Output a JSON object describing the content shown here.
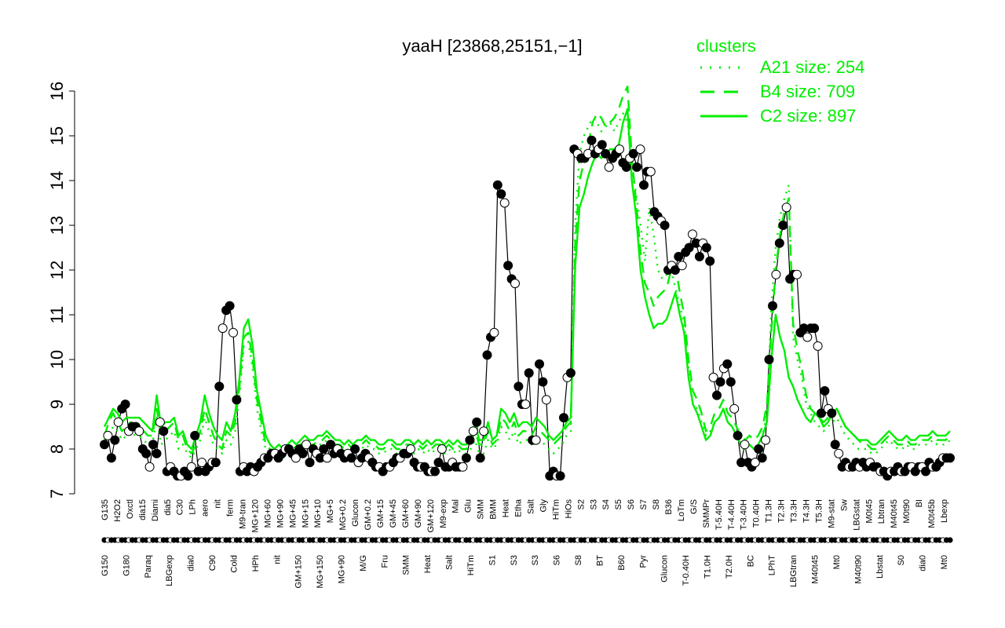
{
  "chart_data": {
    "type": "line",
    "title": "yaaH [23868,25151,−1]",
    "xlabel": "",
    "ylabel": "",
    "ylim": [
      7,
      16
    ],
    "yticks": [
      7,
      8,
      9,
      10,
      11,
      12,
      13,
      14,
      15,
      16
    ],
    "grid": false,
    "legend": {
      "position": "top-right",
      "title": "clusters",
      "entries": [
        {
          "label": "A21 size: 254",
          "style": "dotted"
        },
        {
          "label": "B4 size: 709",
          "style": "dashed"
        },
        {
          "label": "C2 size: 897",
          "style": "solid"
        }
      ]
    },
    "colors": {
      "cluster": "#00ee00",
      "data": "#000000"
    },
    "x_labels_upper": [
      "G135",
      "H2O2",
      "Oxctl",
      "dia15",
      "Diami",
      "dia5",
      "C30",
      "LPh",
      "aero",
      "nit",
      "ferm",
      "M9-tran",
      "MG+120",
      "MG+60",
      "MG+90",
      "MG+45",
      "MG+15",
      "MG+10",
      "MG+5",
      "MG+0.2",
      "Glucon",
      "GM+0.2",
      "GM+15",
      "GM+45",
      "GM+60",
      "GM+90",
      "GM+120",
      "M9-exp",
      "Mal",
      "Glu",
      "SMM",
      "BMM",
      "Heat",
      "Etha",
      "Salt",
      "Gly",
      "HiTm",
      "HiOs",
      "S2",
      "S3",
      "S4",
      "S5",
      "S6",
      "S7",
      "S8",
      "B36",
      "LoTm",
      "G/S",
      "SMMPr",
      "T-5.40H",
      "T-4.40H",
      "T-3.40H",
      "T0.40H",
      "T1.3H",
      "T2.3H",
      "T3.3H",
      "T4.3H",
      "T5.3H",
      "M9-stat",
      "Sw",
      "LBGstat",
      "M0t45",
      "Lbtran",
      "M40t45",
      "M0t90",
      "BI",
      "M0t45b",
      "Lbexp"
    ],
    "x_labels_lower": [
      "G150",
      "G180",
      "Paraq",
      "LBGexp",
      "dia0",
      "C90",
      "Cold",
      "HPh",
      "nit",
      "GM+150",
      "MG+150",
      "MG+90",
      "M/G",
      "Fru",
      "SMM",
      "Heat",
      "Salt",
      "HiTm",
      "S1",
      "S3",
      "S3",
      "S6",
      "S8",
      "BT",
      "B60",
      "Pyr",
      "Glucon",
      "T-0.40H",
      "T1.0H",
      "T2.0H",
      "BC",
      "LPhT",
      "LBGtran",
      "M40t45",
      "Mt0",
      "M40t90",
      "Lbstat",
      "S0",
      "dia0",
      "Mt0"
    ],
    "series": [
      {
        "name": "",
        "values": [
          8.1,
          8.3,
          7.8,
          8.2,
          8.6,
          8.9,
          9.0,
          8.4,
          8.5,
          8.5,
          8.4,
          8.0,
          7.9,
          7.6,
          8.1,
          7.9,
          8.6,
          8.4,
          7.5,
          7.6,
          7.5,
          7.4,
          7.4,
          7.5,
          7.4,
          7.6,
          8.3,
          7.5,
          7.7,
          7.5,
          7.6,
          7.7,
          7.7,
          9.4,
          10.7,
          11.1,
          11.2,
          10.6,
          9.1,
          7.5,
          7.6,
          7.5,
          7.6,
          7.5,
          7.6,
          7.7,
          7.8,
          7.8,
          7.9,
          7.9,
          7.8,
          7.9,
          8.0,
          8.0,
          7.9,
          7.8,
          8.0,
          7.9,
          8.1,
          7.7,
          8.0,
          7.9,
          7.8,
          8.0,
          7.8,
          8.1,
          7.9,
          8.0,
          7.9,
          7.8,
          7.9,
          7.8,
          8.0,
          7.7,
          7.8,
          7.9,
          7.8,
          7.7,
          7.6,
          7.6,
          7.5,
          7.6,
          7.6,
          7.7,
          7.8,
          7.8,
          7.9,
          7.9,
          8.0,
          7.7,
          7.6,
          7.6,
          7.6,
          7.5,
          7.5,
          7.5,
          7.7,
          8.0,
          7.6,
          7.6,
          7.7,
          7.6,
          7.6,
          7.6,
          7.8,
          8.2,
          8.4,
          8.6,
          7.8,
          8.4,
          10.1,
          10.5,
          10.6,
          13.9,
          13.7,
          13.5,
          12.1,
          11.8,
          11.7,
          9.4,
          9.0,
          9.0,
          9.7,
          8.2,
          8.2,
          9.9,
          9.5,
          9.1,
          7.4,
          7.5,
          7.4,
          7.4,
          8.7,
          9.6,
          9.7,
          14.7,
          14.6,
          14.5,
          14.5,
          14.6,
          14.9,
          14.6,
          14.7,
          14.8,
          14.6,
          14.3,
          14.5,
          14.6,
          14.7,
          14.4,
          14.3,
          14.5,
          14.6,
          14.3,
          14.7,
          13.9,
          14.2,
          14.2,
          13.3,
          13.2,
          13.1,
          13.0,
          12.0,
          12.1,
          12.0,
          12.3,
          12.1,
          12.4,
          12.5,
          12.8,
          12.6,
          12.3,
          12.6,
          12.5,
          12.2,
          9.6,
          9.2,
          9.5,
          9.8,
          9.9,
          9.5,
          8.9,
          8.3,
          7.7,
          8.1,
          7.7,
          7.6,
          7.7,
          8.0,
          7.8,
          8.2,
          10.0,
          11.2,
          11.9,
          12.6,
          13.0,
          13.4,
          11.8,
          11.9,
          11.9,
          10.6,
          10.7,
          10.5,
          10.7,
          10.7,
          10.3,
          8.8,
          9.3,
          8.9,
          8.8,
          8.1,
          7.9,
          7.6,
          7.7,
          7.6,
          7.6,
          7.7,
          7.6,
          7.7,
          7.6,
          7.7,
          7.6,
          7.6,
          7.5,
          7.5,
          7.4,
          7.5,
          7.5,
          7.6,
          7.5,
          7.5,
          7.6,
          7.6,
          7.5,
          7.6,
          7.6,
          7.5,
          7.7,
          7.6,
          7.6,
          7.7,
          7.8,
          7.8,
          7.8
        ]
      },
      {
        "name": "C2 size: 897",
        "style": "solid",
        "values": [
          8.5,
          8.7,
          8.9,
          8.8,
          8.6,
          8.7,
          8.7,
          8.7,
          8.7,
          8.6,
          8.5,
          8.4,
          9.2,
          8.5,
          8.6,
          8.6,
          8.7,
          8.3,
          8.4,
          8.1,
          8.0,
          8.3,
          8.6,
          9.2,
          8.8,
          8.5,
          8.3,
          8.2,
          8.6,
          8.4,
          8.8,
          9.6,
          10.7,
          10.9,
          10.3,
          9.3,
          8.8,
          8.3,
          8.1,
          8.0,
          8.1,
          8.0,
          8.1,
          8.2,
          8.1,
          8.2,
          8.3,
          8.2,
          8.2,
          8.3,
          8.3,
          8.4,
          8.3,
          8.2,
          8.2,
          8.1,
          8.2,
          8.1,
          8.2,
          8.2,
          8.3,
          8.2,
          8.2,
          8.1,
          8.1,
          8.2,
          8.2,
          8.1,
          8.1,
          8.2,
          8.2,
          8.1,
          8.2,
          8.1,
          8.2,
          8.1,
          8.2,
          8.2,
          8.1,
          8.2,
          8.1,
          8.2,
          8.1,
          8.1,
          8.2,
          8.6,
          8.2,
          8.2,
          8.6,
          8.2,
          8.3,
          8.9,
          8.8,
          8.6,
          8.8,
          8.5,
          8.6,
          8.6,
          8.5,
          8.7,
          8.6,
          8.5,
          8.3,
          8.2,
          8.3,
          8.4,
          8.6,
          8.7,
          12.1,
          13.4,
          13.7,
          14.1,
          14.4,
          14.6,
          14.5,
          14.6,
          14.7,
          14.7,
          14.8,
          15.3,
          15.6,
          14.0,
          13.2,
          12.0,
          11.4,
          11.0,
          10.7,
          10.8,
          10.8,
          10.9,
          11.2,
          11.5,
          11.0,
          10.6,
          9.6,
          9.0,
          8.8,
          8.5,
          8.2,
          8.3,
          8.6,
          8.7,
          8.9,
          8.6,
          8.5,
          8.3,
          8.1,
          8.0,
          8.1,
          8.0,
          8.1,
          8.3,
          8.6,
          10.0,
          11.0,
          10.5,
          10.2,
          9.6,
          9.4,
          9.1,
          8.9,
          8.7,
          8.6,
          8.8,
          8.7,
          8.5,
          8.6,
          8.8,
          8.9,
          8.7,
          8.5,
          8.4,
          8.3,
          8.2,
          8.2,
          8.2,
          8.1,
          8.1,
          8.2,
          8.3,
          8.4,
          8.3,
          8.2,
          8.2,
          8.3,
          8.2,
          8.2,
          8.3,
          8.3,
          8.3,
          8.4,
          8.3,
          8.3,
          8.3,
          8.4
        ]
      },
      {
        "name": "B4 size: 709",
        "style": "dashed",
        "values": [
          8.3,
          8.6,
          8.8,
          8.6,
          8.4,
          8.5,
          8.6,
          8.5,
          8.5,
          8.4,
          8.3,
          8.3,
          8.9,
          8.3,
          8.4,
          8.5,
          8.6,
          8.2,
          8.3,
          8.0,
          7.9,
          8.1,
          8.4,
          8.9,
          8.6,
          8.3,
          8.1,
          8.0,
          8.4,
          8.3,
          8.6,
          9.4,
          10.5,
          10.6,
          10.0,
          9.1,
          8.6,
          8.1,
          8.0,
          7.9,
          8.0,
          7.9,
          8.0,
          8.1,
          8.0,
          8.1,
          8.2,
          8.1,
          8.1,
          8.2,
          8.2,
          8.3,
          8.2,
          8.1,
          8.1,
          8.0,
          8.1,
          8.0,
          8.1,
          8.1,
          8.2,
          8.1,
          8.1,
          8.0,
          8.0,
          8.1,
          8.1,
          8.0,
          8.0,
          8.1,
          8.1,
          8.0,
          8.1,
          8.0,
          8.1,
          8.0,
          8.1,
          8.1,
          8.0,
          8.1,
          8.0,
          8.1,
          8.0,
          8.0,
          8.1,
          8.4,
          8.1,
          8.1,
          8.4,
          8.1,
          8.2,
          8.7,
          8.6,
          8.4,
          8.6,
          8.3,
          8.4,
          8.4,
          8.3,
          8.5,
          8.4,
          8.3,
          8.2,
          8.1,
          8.2,
          8.3,
          8.5,
          8.6,
          12.6,
          14.0,
          14.4,
          14.8,
          15.3,
          15.5,
          15.4,
          15.2,
          15.3,
          15.4,
          15.6,
          15.9,
          16.1,
          14.5,
          13.5,
          12.4,
          11.7,
          11.5,
          11.2,
          11.4,
          11.5,
          11.6,
          12.0,
          12.1,
          11.5,
          11.0,
          10.0,
          9.3,
          9.1,
          8.8,
          8.4,
          8.5,
          8.8,
          8.9,
          9.1,
          8.8,
          8.7,
          8.5,
          8.3,
          8.2,
          8.3,
          8.2,
          8.3,
          8.5,
          9.0,
          10.6,
          12.0,
          12.8,
          13.3,
          13.6,
          10.8,
          10.2,
          9.8,
          9.2,
          8.9,
          8.8,
          8.7,
          8.6,
          8.7,
          8.8,
          8.9,
          8.7,
          8.5,
          8.4,
          8.3,
          8.2,
          8.1,
          8.1,
          8.0,
          8.0,
          8.1,
          8.2,
          8.3,
          8.2,
          8.1,
          8.1,
          8.2,
          8.1,
          8.1,
          8.2,
          8.2,
          8.2,
          8.3,
          8.2,
          8.2,
          8.2,
          8.3
        ]
      },
      {
        "name": "A21 size: 254",
        "style": "dotted",
        "values": [
          8.2,
          8.3,
          8.5,
          8.4,
          8.2,
          8.3,
          8.4,
          8.3,
          8.3,
          8.2,
          8.1,
          8.1,
          8.7,
          8.1,
          8.2,
          8.3,
          8.4,
          8.0,
          8.1,
          7.9,
          7.8,
          8.0,
          8.2,
          8.7,
          8.4,
          8.1,
          8.0,
          7.9,
          8.2,
          8.1,
          8.4,
          9.2,
          10.3,
          10.4,
          9.8,
          8.9,
          8.4,
          8.0,
          7.9,
          7.8,
          7.9,
          7.8,
          7.9,
          8.0,
          7.9,
          8.0,
          8.1,
          8.0,
          8.0,
          8.1,
          8.1,
          8.2,
          8.1,
          8.0,
          8.0,
          7.9,
          8.0,
          7.9,
          8.0,
          8.0,
          8.1,
          8.0,
          8.0,
          7.9,
          7.9,
          8.0,
          8.0,
          7.9,
          7.9,
          8.0,
          8.0,
          7.9,
          8.0,
          7.9,
          8.0,
          7.9,
          8.0,
          8.0,
          7.9,
          8.0,
          7.9,
          8.0,
          7.9,
          7.9,
          8.0,
          8.2,
          7.9,
          7.9,
          8.2,
          8.0,
          8.1,
          8.5,
          8.4,
          8.2,
          8.4,
          8.1,
          8.2,
          8.2,
          8.1,
          8.3,
          8.2,
          8.1,
          8.0,
          7.9,
          8.0,
          8.1,
          8.3,
          8.4,
          13.0,
          14.6,
          15.0,
          15.2,
          15.4,
          15.3,
          15.1,
          15.2,
          15.3,
          15.1,
          15.3,
          15.5,
          15.3,
          14.3,
          13.7,
          13.0,
          12.2,
          13.4,
          12.8,
          12.0,
          11.8,
          11.9,
          12.0,
          11.6,
          11.2,
          10.8,
          9.8,
          9.0,
          8.9,
          8.6,
          8.3,
          8.4,
          8.6,
          8.7,
          8.9,
          8.6,
          8.5,
          8.3,
          8.1,
          8.0,
          8.1,
          8.0,
          8.1,
          8.3,
          8.8,
          11.2,
          12.5,
          13.2,
          13.6,
          13.9,
          10.5,
          10.0,
          9.6,
          9.0,
          8.8,
          8.6,
          8.5,
          8.4,
          8.5,
          8.6,
          8.7,
          8.5,
          8.3,
          8.2,
          8.1,
          8.0,
          8.0,
          8.0,
          7.9,
          7.9,
          8.0,
          8.1,
          8.2,
          8.1,
          8.0,
          8.0,
          8.1,
          8.0,
          8.0,
          8.1,
          8.1,
          8.1,
          8.2,
          8.1,
          8.1,
          8.1,
          8.2
        ]
      }
    ]
  }
}
